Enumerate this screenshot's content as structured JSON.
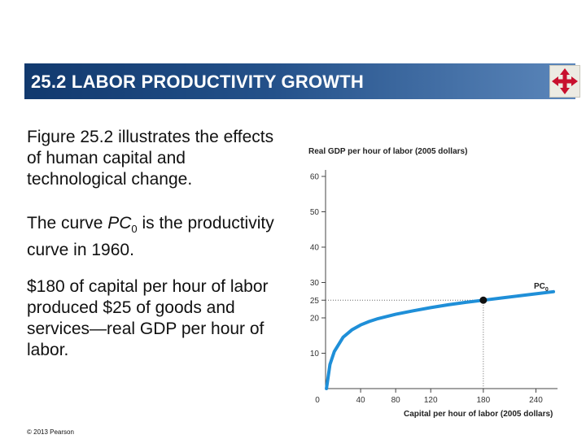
{
  "header": {
    "title": "25.2  LABOR PRODUCTIVITY GROWTH"
  },
  "nav_icon": {
    "name": "four-way-arrow-icon",
    "color": "#c8102e"
  },
  "body": {
    "para1": "Figure 25.2 illustrates the effects of human capital and technological change.",
    "para2_pre": "The curve ",
    "para2_var": "PC",
    "para2_sub": "0",
    "para2_post": " is the productivity curve in 1960.",
    "para3": "$180 of capital per hour of labor produced $25 of goods and services—real GDP per hour of labor."
  },
  "footer": {
    "copyright": "© 2013 Pearson"
  },
  "chart_data": {
    "type": "line",
    "ylabel": "Real GDP per hour of labor (2005 dollars)",
    "xlabel": "Capital per hour of labor (2005 dollars)",
    "xlim": [
      0,
      260
    ],
    "ylim": [
      0,
      60
    ],
    "x_ticks": [
      0,
      40,
      80,
      120,
      180,
      240
    ],
    "y_ticks": [
      10,
      20,
      25,
      30,
      40,
      50,
      60
    ],
    "series": [
      {
        "name": "PC0",
        "label_main": "PC",
        "label_sub": "0",
        "color": "#1f8fd8",
        "x": [
          1,
          5,
          10,
          20,
          30,
          40,
          50,
          60,
          80,
          100,
          120,
          140,
          160,
          180,
          200,
          220,
          240,
          260
        ],
        "y": [
          0,
          6.8,
          10.5,
          14.5,
          16.6,
          18.0,
          19.0,
          19.8,
          21.0,
          22.0,
          22.9,
          23.7,
          24.4,
          25.0,
          25.6,
          26.2,
          26.8,
          27.4
        ]
      }
    ],
    "highlight_point": {
      "x": 180,
      "y": 25
    },
    "grid": false
  }
}
